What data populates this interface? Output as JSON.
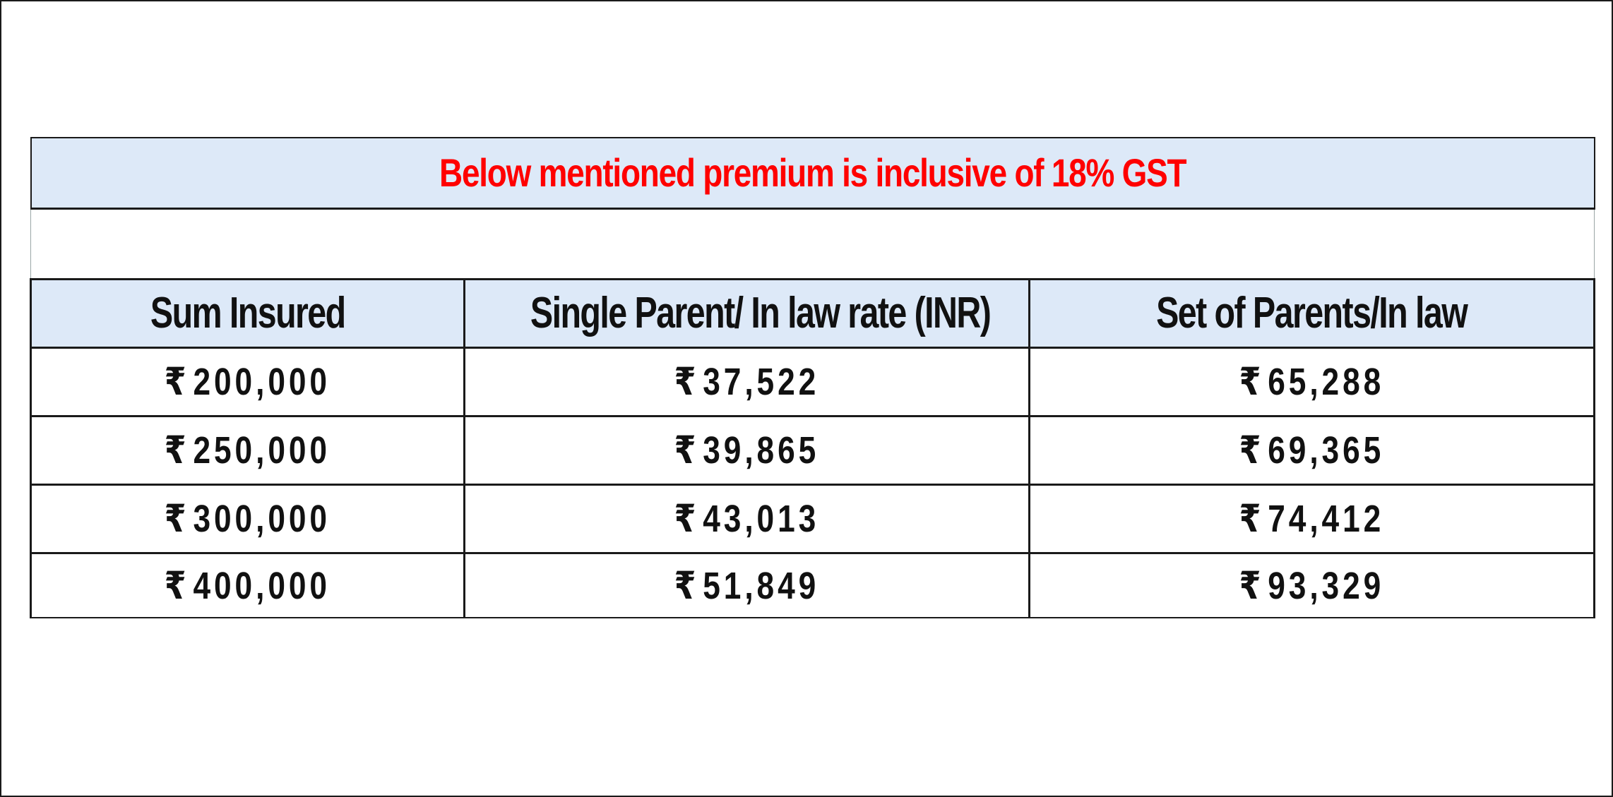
{
  "notice": "Below mentioned premium is inclusive of 18% GST",
  "table": {
    "headers": [
      "Sum Insured",
      "Single Parent/ In law rate (INR)",
      "Set of Parents/In law"
    ],
    "currency_symbol": "₹",
    "rows": [
      [
        "200,000",
        "37,522",
        "65,288"
      ],
      [
        "250,000",
        "39,865",
        "69,365"
      ],
      [
        "300,000",
        "43,013",
        "74,412"
      ],
      [
        "400,000",
        "51,849",
        "93,329"
      ]
    ]
  },
  "colors": {
    "header_bg": "#dde9f8",
    "notice_text": "#ff0000",
    "border": "#1a1a1a"
  }
}
